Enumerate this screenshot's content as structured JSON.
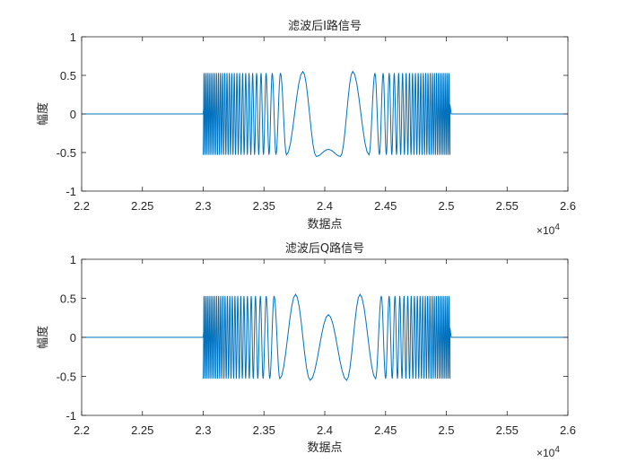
{
  "chart_data": [
    {
      "type": "line",
      "title": "滤波后I路信号",
      "xlabel": "数据点",
      "ylabel": "幅度",
      "xlim": [
        22000,
        26000
      ],
      "ylim": [
        -1,
        1
      ],
      "xtick_labels": [
        "2.2",
        "2.25",
        "2.3",
        "2.35",
        "2.4",
        "2.45",
        "2.5",
        "2.55",
        "2.6"
      ],
      "ytick_labels": [
        "1",
        "0.5",
        "0",
        "-0.5",
        "-1"
      ],
      "x_exponent_label": "×10",
      "x_exponent_power": "4",
      "series": [
        {
          "color": "#0072BD",
          "signal_start": 23000,
          "signal_end": 25030,
          "center": 24030,
          "baseline": 0,
          "amplitude": 0.53,
          "extrema": [
            {
              "x": 23820,
              "y": 0.55
            },
            {
              "x": 23930,
              "y": -0.55
            },
            {
              "x": 24030,
              "y": -0.46
            },
            {
              "x": 24130,
              "y": -0.55
            },
            {
              "x": 24230,
              "y": 0.55
            }
          ]
        }
      ]
    },
    {
      "type": "line",
      "title": "滤波后Q路信号",
      "xlabel": "数据点",
      "ylabel": "幅度",
      "xlim": [
        22000,
        26000
      ],
      "ylim": [
        -1,
        1
      ],
      "xtick_labels": [
        "2.2",
        "2.25",
        "2.3",
        "2.35",
        "2.4",
        "2.45",
        "2.5",
        "2.55",
        "2.6"
      ],
      "ytick_labels": [
        "1",
        "0.5",
        "0",
        "-0.5",
        "-1"
      ],
      "x_exponent_label": "×10",
      "x_exponent_power": "4",
      "series": [
        {
          "color": "#0072BD",
          "signal_start": 23000,
          "signal_end": 25030,
          "center": 24030,
          "baseline": 0,
          "amplitude": 0.53,
          "extrema": [
            {
              "x": 23760,
              "y": 0.55
            },
            {
              "x": 23880,
              "y": -0.55
            },
            {
              "x": 24030,
              "y": 0.29
            },
            {
              "x": 24180,
              "y": -0.55
            },
            {
              "x": 24290,
              "y": 0.55
            }
          ]
        }
      ]
    }
  ]
}
